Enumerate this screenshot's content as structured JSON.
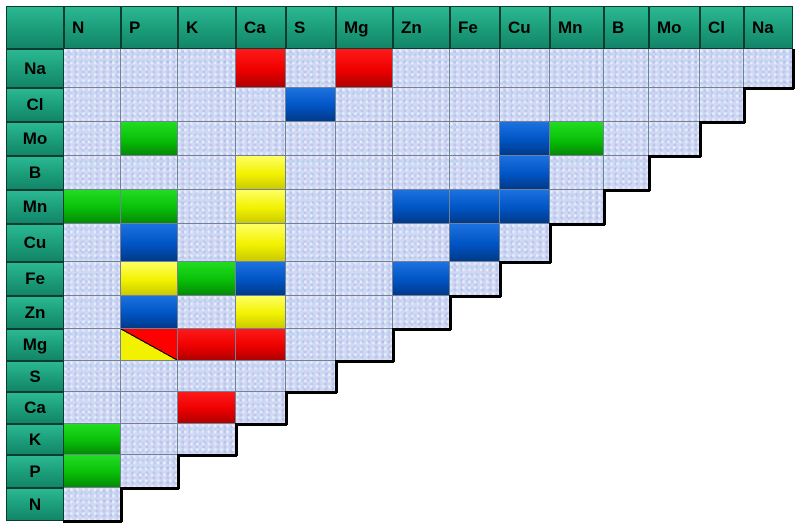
{
  "column_headers": [
    "N",
    "P",
    "K",
    "Ca",
    "S",
    "Mg",
    "Zn",
    "Fe",
    "Cu",
    "Mn",
    "B",
    "Mo",
    "Cl",
    "Na"
  ],
  "row_headers": [
    "Na",
    "Cl",
    "Mo",
    "B",
    "Mn",
    "Cu",
    "Fe",
    "Zn",
    "Mg",
    "S",
    "Ca",
    "K",
    "P",
    "N"
  ],
  "colors": {
    "header_green": "#1a9a77",
    "cell_bg": "#cfd9f3",
    "red": "#ee0000",
    "blue": "#0054c4",
    "green": "#08c008",
    "yellow": "#f2f200"
  },
  "interactions": [
    {
      "row": "Na",
      "col": "Ca",
      "color": "red"
    },
    {
      "row": "Na",
      "col": "Mg",
      "color": "red"
    },
    {
      "row": "Cl",
      "col": "S",
      "color": "blue"
    },
    {
      "row": "Mo",
      "col": "P",
      "color": "green"
    },
    {
      "row": "Mo",
      "col": "Cu",
      "color": "blue"
    },
    {
      "row": "Mo",
      "col": "Mn",
      "color": "green"
    },
    {
      "row": "B",
      "col": "Ca",
      "color": "yellow"
    },
    {
      "row": "B",
      "col": "Cu",
      "color": "blue"
    },
    {
      "row": "Mn",
      "col": "N",
      "color": "green"
    },
    {
      "row": "Mn",
      "col": "P",
      "color": "green"
    },
    {
      "row": "Mn",
      "col": "Ca",
      "color": "yellow"
    },
    {
      "row": "Mn",
      "col": "Zn",
      "color": "blue"
    },
    {
      "row": "Mn",
      "col": "Fe",
      "color": "blue"
    },
    {
      "row": "Mn",
      "col": "Cu",
      "color": "blue"
    },
    {
      "row": "Cu",
      "col": "P",
      "color": "blue"
    },
    {
      "row": "Cu",
      "col": "Ca",
      "color": "yellow"
    },
    {
      "row": "Cu",
      "col": "Fe",
      "color": "blue"
    },
    {
      "row": "Fe",
      "col": "P",
      "color": "yellow"
    },
    {
      "row": "Fe",
      "col": "K",
      "color": "green"
    },
    {
      "row": "Fe",
      "col": "Ca",
      "color": "blue"
    },
    {
      "row": "Fe",
      "col": "Zn",
      "color": "blue"
    },
    {
      "row": "Zn",
      "col": "P",
      "color": "blue"
    },
    {
      "row": "Zn",
      "col": "Ca",
      "color": "yellow"
    },
    {
      "row": "Mg",
      "col": "P",
      "color": "yellow-red-split"
    },
    {
      "row": "Mg",
      "col": "K",
      "color": "red"
    },
    {
      "row": "Mg",
      "col": "Ca",
      "color": "red"
    },
    {
      "row": "Ca",
      "col": "K",
      "color": "red"
    },
    {
      "row": "K",
      "col": "N",
      "color": "green"
    },
    {
      "row": "P",
      "col": "N",
      "color": "green"
    }
  ]
}
